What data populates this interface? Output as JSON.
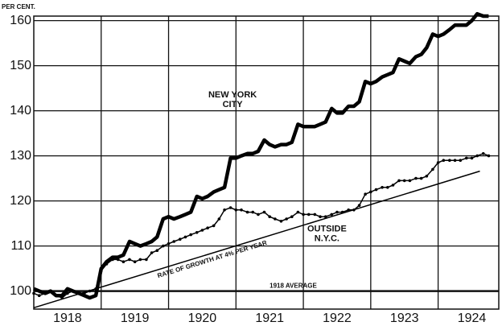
{
  "chart_data": {
    "type": "line",
    "ylabel": "PER CENT.",
    "x": [
      1918,
      1918.08,
      1918.17,
      1918.25,
      1918.33,
      1918.42,
      1918.5,
      1918.58,
      1918.67,
      1918.75,
      1918.83,
      1918.92,
      1919,
      1919.08,
      1919.17,
      1919.25,
      1919.33,
      1919.42,
      1919.5,
      1919.58,
      1919.67,
      1919.75,
      1919.83,
      1919.92,
      1920,
      1920.08,
      1920.17,
      1920.25,
      1920.33,
      1920.42,
      1920.5,
      1920.58,
      1920.67,
      1920.75,
      1920.83,
      1920.92,
      1921,
      1921.08,
      1921.17,
      1921.25,
      1921.33,
      1921.42,
      1921.5,
      1921.58,
      1921.67,
      1921.75,
      1921.83,
      1921.92,
      1922,
      1922.08,
      1922.17,
      1922.25,
      1922.33,
      1922.42,
      1922.5,
      1922.58,
      1922.67,
      1922.75,
      1922.83,
      1922.92,
      1923,
      1923.08,
      1923.17,
      1923.25,
      1923.33,
      1923.42,
      1923.5,
      1923.58,
      1923.67,
      1923.75,
      1923.83,
      1923.92,
      1924,
      1924.08,
      1924.17,
      1924.25,
      1924.33,
      1924.42,
      1924.5,
      1924.58,
      1924.67,
      1924.75
    ],
    "series": [
      {
        "label_lines": [
          "NEW YORK",
          "CITY"
        ],
        "color": "#000000",
        "width": 4.5,
        "label_at": [
          1920.95,
          143.5
        ],
        "values": [
          100.5,
          100,
          99.5,
          100,
          99,
          99,
          100.5,
          100,
          99.5,
          99,
          98.5,
          99,
          105,
          106.5,
          107.5,
          107.5,
          108,
          111,
          110.5,
          110,
          110.5,
          111,
          112,
          116,
          116.5,
          116,
          116.5,
          117,
          117.5,
          121,
          120.5,
          121,
          122,
          122.5,
          123,
          129.5,
          129.5,
          130,
          130.5,
          130.5,
          131,
          133.5,
          132.5,
          132,
          132.5,
          132.5,
          133,
          137,
          136.5,
          136.5,
          136.5,
          137,
          137.5,
          140.5,
          139.5,
          139.5,
          141,
          141,
          142,
          146.5,
          146,
          146.5,
          147.5,
          148,
          148.5,
          151.5,
          151,
          150.5,
          152,
          152.5,
          154,
          157,
          156.5,
          157,
          158,
          159,
          159,
          159,
          160,
          161.5,
          161,
          161
        ]
      },
      {
        "label_lines": [
          "OUTSIDE",
          "N.Y.C."
        ],
        "color": "#000000",
        "width": 1.5,
        "markers": true,
        "label_at": [
          1922.35,
          113.8
        ],
        "values": [
          99.5,
          99,
          99.5,
          100,
          99,
          98.5,
          99.5,
          100,
          99.5,
          99.5,
          100,
          100.5,
          104.5,
          106,
          107,
          107,
          106.5,
          107,
          106.5,
          107,
          107,
          108.5,
          109,
          110,
          110.5,
          111,
          111.5,
          112,
          112.5,
          113,
          113.5,
          114,
          114.5,
          116,
          118,
          118.5,
          118,
          118,
          117.5,
          117.5,
          117,
          117.5,
          116.5,
          116,
          115.5,
          116,
          116.5,
          117.5,
          117,
          117,
          117,
          116.5,
          116.5,
          117,
          117.5,
          117.5,
          118,
          118,
          119,
          121.5,
          122,
          122.5,
          123,
          123,
          123.5,
          124.5,
          124.5,
          124.5,
          125,
          125,
          125.5,
          127,
          128.5,
          129,
          129,
          129,
          129,
          129.5,
          129.5,
          130,
          130.5,
          130
        ]
      },
      {
        "name": "RATE OF GROWTH AT 4% PER YEAR",
        "color": "#000000",
        "width": 1.5,
        "x": [
          1918,
          1924.62
        ],
        "values": [
          96.3,
          126.6
        ]
      }
    ],
    "reference_line": {
      "value": 100,
      "label": "1918 AVERAGE"
    },
    "xlim": [
      1918,
      1924.9
    ],
    "xticks": [
      {
        "value": 1918.5,
        "label": "1918"
      },
      {
        "value": 1919.5,
        "label": "1919"
      },
      {
        "value": 1920.5,
        "label": "1920"
      },
      {
        "value": 1921.5,
        "label": "1921"
      },
      {
        "value": 1922.5,
        "label": "1922"
      },
      {
        "value": 1923.5,
        "label": "1923"
      },
      {
        "value": 1924.5,
        "label": "1924"
      }
    ],
    "xgrid": [
      1919,
      1920,
      1921,
      1922,
      1923,
      1924
    ],
    "ylim": [
      96,
      161
    ],
    "yticks": [
      100,
      110,
      120,
      130,
      140,
      150,
      160
    ],
    "grid": true
  }
}
